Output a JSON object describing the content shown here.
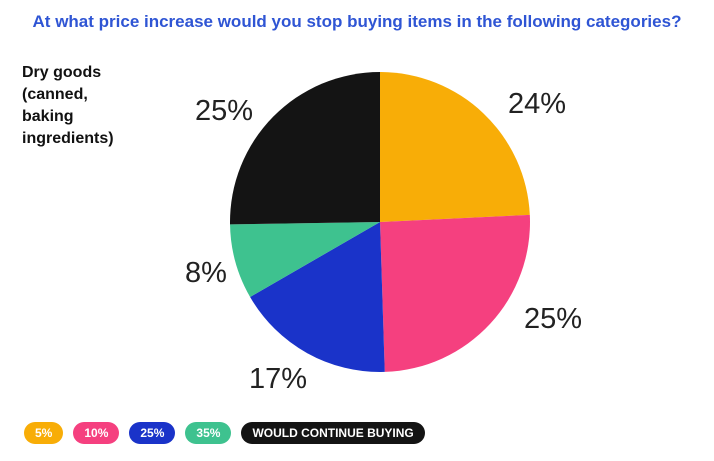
{
  "chart_data": {
    "type": "pie",
    "title": "At what price increase would you stop buying items in the following categories?",
    "category_label_lines": [
      "Dry goods",
      "(canned,",
      "baking",
      "ingredients)"
    ],
    "slices": [
      {
        "label": "5%",
        "value": 24,
        "display": "24%",
        "color": "#f8ad07"
      },
      {
        "label": "10%",
        "value": 25,
        "display": "25%",
        "color": "#f5407f"
      },
      {
        "label": "25%",
        "value": 17,
        "display": "17%",
        "color": "#1a33c9"
      },
      {
        "label": "35%",
        "value": 8,
        "display": "8%",
        "color": "#3ec28f"
      },
      {
        "label": "WOULD CONTINUE BUYING",
        "value": 25,
        "display": "25%",
        "color": "#141414"
      }
    ],
    "legend_placement": "bottom-left"
  }
}
